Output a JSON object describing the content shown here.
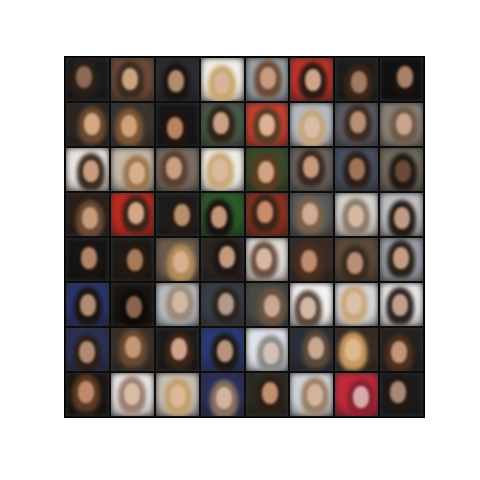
{
  "grid": {
    "rows": 8,
    "cols": 8,
    "tiles": [
      {
        "bg": "#1a1a1a",
        "hair": "#2a1f18",
        "skin": "#8a6a55"
      },
      {
        "bg": "#6b4a3a",
        "hair": "#3a2a20",
        "skin": "#c9a27e"
      },
      {
        "bg": "#2a2a30",
        "hair": "#1a1410",
        "skin": "#b28a6c"
      },
      {
        "bg": "#f2eee8",
        "hair": "#c8a870",
        "skin": "#d8b49a"
      },
      {
        "bg": "#9aa2aa",
        "hair": "#6a4a36",
        "skin": "#c89a80"
      },
      {
        "bg": "#c0322a",
        "hair": "#2a1a14",
        "skin": "#cfa58a"
      },
      {
        "bg": "#1c1c1c",
        "hair": "#3a2418",
        "skin": "#a07a64"
      },
      {
        "bg": "#101010",
        "hair": "#181210",
        "skin": "#a78068"
      },
      {
        "bg": "#2b2420",
        "hair": "#6a4a30",
        "skin": "#d4a982"
      },
      {
        "bg": "#3a3430",
        "hair": "#7a5632",
        "skin": "#cfa27c"
      },
      {
        "bg": "#161616",
        "hair": "#1e1410",
        "skin": "#b88462"
      },
      {
        "bg": "#4a5a4a",
        "hair": "#2e2218",
        "skin": "#caa188"
      },
      {
        "bg": "#c9402e",
        "hair": "#5a3a24",
        "skin": "#dbb292"
      },
      {
        "bg": "#b8bcc4",
        "hair": "#c2a680",
        "skin": "#d8bca4"
      },
      {
        "bg": "#5a5a66",
        "hair": "#3a2a22",
        "skin": "#b88e76"
      },
      {
        "bg": "#8a8078",
        "hair": "#6e5a48",
        "skin": "#c8a48c"
      },
      {
        "bg": "#e8e4e0",
        "hair": "#3a2a20",
        "skin": "#c89c7e"
      },
      {
        "bg": "#c4b8a8",
        "hair": "#9a7650",
        "skin": "#d8b08c"
      },
      {
        "bg": "#7a6e64",
        "hair": "#5a4030",
        "skin": "#caa084"
      },
      {
        "bg": "#f0ece6",
        "hair": "#c8aa7a",
        "skin": "#dcbaa0"
      },
      {
        "bg": "#3a4a2a",
        "hair": "#5a3a20",
        "skin": "#d0a480"
      },
      {
        "bg": "#6a6460",
        "hair": "#3a2820",
        "skin": "#c49a7a"
      },
      {
        "bg": "#485062",
        "hair": "#2a1e18",
        "skin": "#a07458"
      },
      {
        "bg": "#706a5a",
        "hair": "#201814",
        "skin": "#6a4a36"
      },
      {
        "bg": "#2a1e18",
        "hair": "#6a4a34",
        "skin": "#c89a7c"
      },
      {
        "bg": "#c02a1e",
        "hair": "#3a2218",
        "skin": "#d4a686"
      },
      {
        "bg": "#1c1c1c",
        "hair": "#241a14",
        "skin": "#b8906e"
      },
      {
        "bg": "#2a5a2a",
        "hair": "#181210",
        "skin": "#c29678"
      },
      {
        "bg": "#8a3020",
        "hair": "#3a2418",
        "skin": "#c88c6a"
      },
      {
        "bg": "#5a5a5a",
        "hair": "#7a6048",
        "skin": "#d0ac94"
      },
      {
        "bg": "#d8d4d0",
        "hair": "#8a7a6a",
        "skin": "#d4b8a2"
      },
      {
        "bg": "#c0c0c4",
        "hair": "#241a16",
        "skin": "#c09a84"
      },
      {
        "bg": "#141414",
        "hair": "#1a1410",
        "skin": "#b08468"
      },
      {
        "bg": "#1c1a18",
        "hair": "#241810",
        "skin": "#a87a5c"
      },
      {
        "bg": "#6a5a4a",
        "hair": "#b08a5a",
        "skin": "#d8b08c"
      },
      {
        "bg": "#2a2420",
        "hair": "#1e1612",
        "skin": "#c29a80"
      },
      {
        "bg": "#e0dcd8",
        "hair": "#6a5040",
        "skin": "#d8b8a0"
      },
      {
        "bg": "#3a2a24",
        "hair": "#4a2e20",
        "skin": "#c08c70"
      },
      {
        "bg": "#5a4a3a",
        "hair": "#3a2a1e",
        "skin": "#b89076"
      },
      {
        "bg": "#9aa0a8",
        "hair": "#2a2018",
        "skin": "#c49c84"
      },
      {
        "bg": "#2a3470",
        "hair": "#1a1410",
        "skin": "#b08c74"
      },
      {
        "bg": "#181410",
        "hair": "#0e0a08",
        "skin": "#8a6450"
      },
      {
        "bg": "#b8bcc0",
        "hair": "#9a8a7a",
        "skin": "#d0b8a4"
      },
      {
        "bg": "#3a3e48",
        "hair": "#2a2420",
        "skin": "#b49a88"
      },
      {
        "bg": "#4a4a44",
        "hair": "#6a5440",
        "skin": "#c8a890"
      },
      {
        "bg": "#f4f2f0",
        "hair": "#5a4a40",
        "skin": "#d4b8a4"
      },
      {
        "bg": "#d8d8d8",
        "hair": "#c8a880",
        "skin": "#dcc0a8"
      },
      {
        "bg": "#e8e6e4",
        "hair": "#2a2220",
        "skin": "#c0a08c"
      },
      {
        "bg": "#2a3058",
        "hair": "#2a2018",
        "skin": "#b08a74"
      },
      {
        "bg": "#3a3028",
        "hair": "#6a4a30",
        "skin": "#c49874"
      },
      {
        "bg": "#1a1a1a",
        "hair": "#3a2418",
        "skin": "#d0a48c"
      },
      {
        "bg": "#2a3a7a",
        "hair": "#1e1814",
        "skin": "#b89480"
      },
      {
        "bg": "#e0e4ec",
        "hair": "#8a8a8a",
        "skin": "#d4c0b4"
      },
      {
        "bg": "#2a2e3a",
        "hair": "#5a4a3a",
        "skin": "#c8a890"
      },
      {
        "bg": "#3a2a22",
        "hair": "#c89a60",
        "skin": "#e0b890"
      },
      {
        "bg": "#24201c",
        "hair": "#4a3020",
        "skin": "#c49478"
      },
      {
        "bg": "#1a1412",
        "hair": "#5a3a26",
        "skin": "#c08a6a"
      },
      {
        "bg": "#e8e6e4",
        "hair": "#9a8070",
        "skin": "#d8bca6"
      },
      {
        "bg": "#c8c0b8",
        "hair": "#c0a070",
        "skin": "#dcb894"
      },
      {
        "bg": "#2a2e5a",
        "hair": "#8a7060",
        "skin": "#d0b4a0"
      },
      {
        "bg": "#2a2a22",
        "hair": "#2a1e16",
        "skin": "#c09070"
      },
      {
        "bg": "#d0d4d8",
        "hair": "#9a8068",
        "skin": "#d4b49c"
      },
      {
        "bg": "#c02a3a",
        "hair": "#8a2030",
        "skin": "#d8a8a8"
      },
      {
        "bg": "#1a1a1c",
        "hair": "#201814",
        "skin": "#a88874"
      }
    ]
  }
}
